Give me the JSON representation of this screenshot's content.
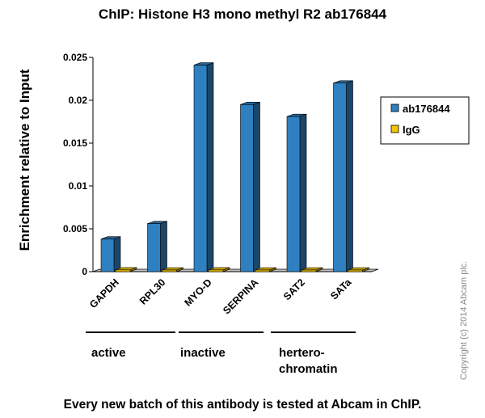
{
  "chart_data": {
    "type": "bar",
    "title": "ChIP: Histone H3 mono methyl R2 ab176844",
    "xlabel": "",
    "ylabel": "Enrichment relative to Input",
    "categories": [
      "GAPDH",
      "RPL30",
      "MYO-D",
      "SERPINA",
      "SAT2",
      "SATa"
    ],
    "series": [
      {
        "name": "ab176844",
        "color": "#2f80c0",
        "values": [
          0.0038,
          0.0056,
          0.0241,
          0.0195,
          0.0181,
          0.022
        ]
      },
      {
        "name": "IgG",
        "color": "#f2c500",
        "values": [
          0.0002,
          0.0001,
          0.0002,
          0.0001,
          0.0001,
          0.0001
        ]
      }
    ],
    "ylim": [
      0,
      0.025
    ],
    "yticks": [
      "0",
      "0.005",
      "0.01",
      "0.015",
      "0.02",
      "0.025"
    ],
    "grid": false,
    "legend_position": "right",
    "groups": [
      {
        "label_lines": [
          "active"
        ],
        "categories": [
          "GAPDH",
          "RPL30"
        ]
      },
      {
        "label_lines": [
          "inactive"
        ],
        "categories": [
          "MYO-D",
          "SERPINA"
        ]
      },
      {
        "label_lines": [
          "hertero-",
          "chromatin"
        ],
        "categories": [
          "SAT2",
          "SATa"
        ]
      }
    ]
  },
  "footer": "Every new batch of this antibody is tested at Abcam in ChIP.",
  "copyright": "Copyright (c) 2014 Abcam plc."
}
